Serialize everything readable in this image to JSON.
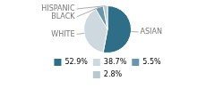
{
  "chart_data": {
    "type": "pie",
    "categories": [
      "ASIAN",
      "WHITE",
      "BLACK",
      "HISPANIC"
    ],
    "values": [
      52.9,
      38.7,
      5.5,
      2.8
    ],
    "value_labels": [
      "52.9%",
      "38.7%",
      "5.5%",
      "2.8%"
    ],
    "colors": [
      "#2e6f87",
      "#ced8df",
      "#6a96aa",
      "#b8c8d0"
    ],
    "legend": "bottom"
  }
}
